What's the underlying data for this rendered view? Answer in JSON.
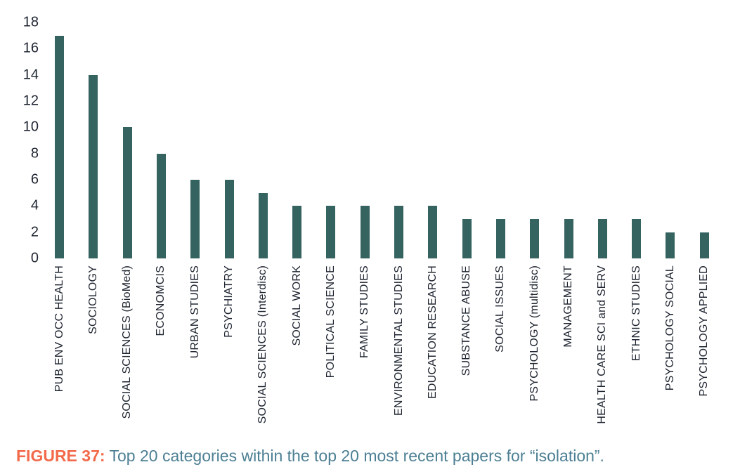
{
  "figure": {
    "caption_label": "FIGURE 37:",
    "caption_text": "Top 20 categories within the top 20 most recent papers for “isolation”."
  },
  "colors": {
    "background": "#ffffff",
    "bar": "#356360",
    "axis_text": "#1e2430",
    "caption_label": "#f26a4b",
    "caption_text": "#4c7f93"
  },
  "chart_data": {
    "type": "bar",
    "title": "",
    "xlabel": "",
    "ylabel": "",
    "categories": [
      "PUB ENV OCC HEALTH",
      "SOCIOLOGY",
      "SOCIAL SCIENCES (BioMed)",
      "ECONOMCIS",
      "URBAN STUDIES",
      "PSYCHIATRY",
      "SOCIAL SCIENCES (Interdisc)",
      "SOCIAL WORK",
      "POLITICAL SCIENCE",
      "FAMILY STUDIES",
      "ENVIRONMENTAL STUDIES",
      "EDUCATION RESEARCH",
      "SUBSTANCE ABUSE",
      "SOCIAL ISSUES",
      "PSYCHOLOGY (multidisc)",
      "MANAGEMENT",
      "HEALTH CARE SCI and SERV",
      "ETHNIC STUDIES",
      "PSYCHOLOGY SOCIAL",
      "PSYCHOLOGY APPLIED"
    ],
    "values": [
      17,
      14,
      10,
      8,
      6,
      6,
      5,
      4,
      4,
      4,
      4,
      4,
      3,
      3,
      3,
      3,
      3,
      3,
      2,
      2
    ],
    "ylim": [
      0,
      18
    ],
    "yticks": [
      0,
      2,
      4,
      6,
      8,
      10,
      12,
      14,
      16,
      18
    ],
    "grid": false,
    "legend": false,
    "bar_color": "#356360",
    "x_tick_rotation": 90
  }
}
